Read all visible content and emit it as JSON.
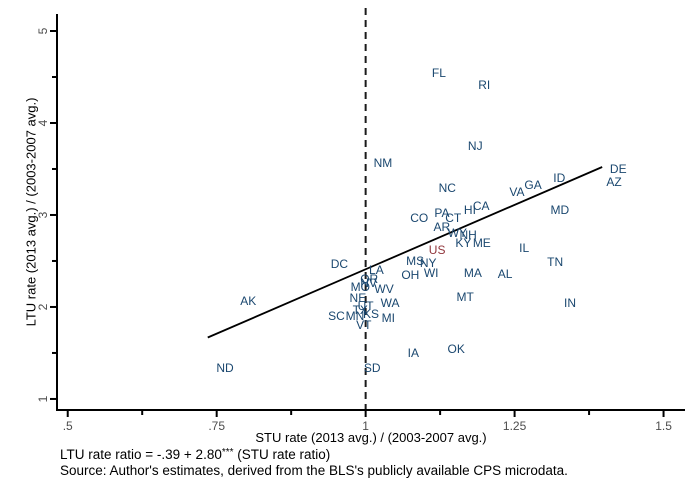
{
  "chart_data": {
    "type": "scatter",
    "title": "",
    "xlabel": "STU rate (2013 avg.) / (2003-2007 avg.)",
    "ylabel": "LTU rate (2013 avg.) / (2003-2007 avg.)",
    "xlim": [
      0.482,
      1.536
    ],
    "ylim": [
      0.88,
      5.25
    ],
    "x_ticks": [
      0.5,
      0.75,
      1.0,
      1.25,
      1.5
    ],
    "x_tick_labels": [
      ".5",
      ".75",
      "1",
      "1.25",
      "1.5"
    ],
    "x_minor_ticks": [
      0.625,
      0.875,
      1.125,
      1.375
    ],
    "y_ticks": [
      1,
      2,
      3,
      4,
      5
    ],
    "y_tick_labels": [
      "1",
      "2",
      "3",
      "4",
      "5"
    ],
    "y_minor_ticks": [
      1.5,
      2.5,
      3.5,
      4.5
    ],
    "grid": false,
    "legend": "none",
    "marker_style": "state-abbreviation-text",
    "reference_line": {
      "x": 1.0,
      "style": "dashed"
    },
    "fit_line": {
      "intercept": -0.39,
      "slope": 2.8,
      "x_start": 0.735,
      "x_end": 1.397
    },
    "colors": {
      "state_label": "#1a476f",
      "us_label": "#90353b",
      "axis": "#000000",
      "fit_line": "#000000",
      "reference_line": "#1a1a1a",
      "tick_label": "#4d4d4d"
    },
    "points": [
      {
        "label": "FL",
        "x": 1.123,
        "y": 4.54
      },
      {
        "label": "RI",
        "x": 1.199,
        "y": 4.41
      },
      {
        "label": "NJ",
        "x": 1.184,
        "y": 3.75
      },
      {
        "label": "NM",
        "x": 1.029,
        "y": 3.57
      },
      {
        "label": "DE",
        "x": 1.424,
        "y": 3.5
      },
      {
        "label": "ID",
        "x": 1.325,
        "y": 3.4
      },
      {
        "label": "AZ",
        "x": 1.417,
        "y": 3.36
      },
      {
        "label": "GA",
        "x": 1.281,
        "y": 3.33
      },
      {
        "label": "NC",
        "x": 1.137,
        "y": 3.29
      },
      {
        "label": "VA",
        "x": 1.254,
        "y": 3.25
      },
      {
        "label": "CA",
        "x": 1.194,
        "y": 3.1
      },
      {
        "label": "HI",
        "x": 1.175,
        "y": 3.05
      },
      {
        "label": "MD",
        "x": 1.326,
        "y": 3.05
      },
      {
        "label": "PA",
        "x": 1.128,
        "y": 3.02
      },
      {
        "label": "CO",
        "x": 1.09,
        "y": 2.97
      },
      {
        "label": "CT",
        "x": 1.147,
        "y": 2.97
      },
      {
        "label": "AR",
        "x": 1.128,
        "y": 2.87
      },
      {
        "label": "WY",
        "x": 1.154,
        "y": 2.8
      },
      {
        "label": "NH",
        "x": 1.172,
        "y": 2.78
      },
      {
        "label": "KY",
        "x": 1.164,
        "y": 2.7
      },
      {
        "label": "ME",
        "x": 1.195,
        "y": 2.7
      },
      {
        "label": "IL",
        "x": 1.266,
        "y": 2.64
      },
      {
        "label": "MS",
        "x": 1.083,
        "y": 2.5
      },
      {
        "label": "TN",
        "x": 1.318,
        "y": 2.49
      },
      {
        "label": "NY",
        "x": 1.105,
        "y": 2.48
      },
      {
        "label": "DC",
        "x": 0.956,
        "y": 2.47
      },
      {
        "label": "LA",
        "x": 1.018,
        "y": 2.4
      },
      {
        "label": "WI",
        "x": 1.11,
        "y": 2.37
      },
      {
        "label": "MA",
        "x": 1.18,
        "y": 2.37
      },
      {
        "label": "AL",
        "x": 1.234,
        "y": 2.36
      },
      {
        "label": "OH",
        "x": 1.075,
        "y": 2.35
      },
      {
        "label": "OR",
        "x": 1.006,
        "y": 2.3
      },
      {
        "label": "NV",
        "x": 1.005,
        "y": 2.26
      },
      {
        "label": "MO",
        "x": 0.991,
        "y": 2.22
      },
      {
        "label": "WV",
        "x": 1.031,
        "y": 2.2
      },
      {
        "label": "MT",
        "x": 1.167,
        "y": 2.11
      },
      {
        "label": "NE",
        "x": 0.987,
        "y": 2.1
      },
      {
        "label": "AK",
        "x": 0.803,
        "y": 2.07
      },
      {
        "label": "WA",
        "x": 1.041,
        "y": 2.04
      },
      {
        "label": "IN",
        "x": 1.343,
        "y": 2.04
      },
      {
        "label": "UT",
        "x": 1.0,
        "y": 2.01
      },
      {
        "label": "TX",
        "x": 0.991,
        "y": 1.97
      },
      {
        "label": "KS",
        "x": 1.009,
        "y": 1.92
      },
      {
        "label": "SC",
        "x": 0.951,
        "y": 1.9
      },
      {
        "label": "MN",
        "x": 0.982,
        "y": 1.9
      },
      {
        "label": "MI",
        "x": 1.038,
        "y": 1.88
      },
      {
        "label": "VT",
        "x": 0.997,
        "y": 1.8
      },
      {
        "label": "OK",
        "x": 1.152,
        "y": 1.54
      },
      {
        "label": "IA",
        "x": 1.08,
        "y": 1.5
      },
      {
        "label": "SD",
        "x": 1.011,
        "y": 1.34
      },
      {
        "label": "ND",
        "x": 0.764,
        "y": 1.34
      },
      {
        "label": "US",
        "x": 1.12,
        "y": 2.62,
        "us": true
      }
    ]
  },
  "axis_titles": {
    "x": "STU rate (2013 avg.) / (2003-2007 avg.)",
    "y": "LTU rate (2013 avg.) / (2003-2007 avg.)"
  },
  "caption": {
    "line1_prefix": "LTU rate ratio = -.39 + 2.80",
    "line1_sup": "***",
    "line1_suffix": " (STU rate ratio)",
    "line2": "Source: Author's estimates, derived from the BLS's publicly available CPS microdata."
  }
}
